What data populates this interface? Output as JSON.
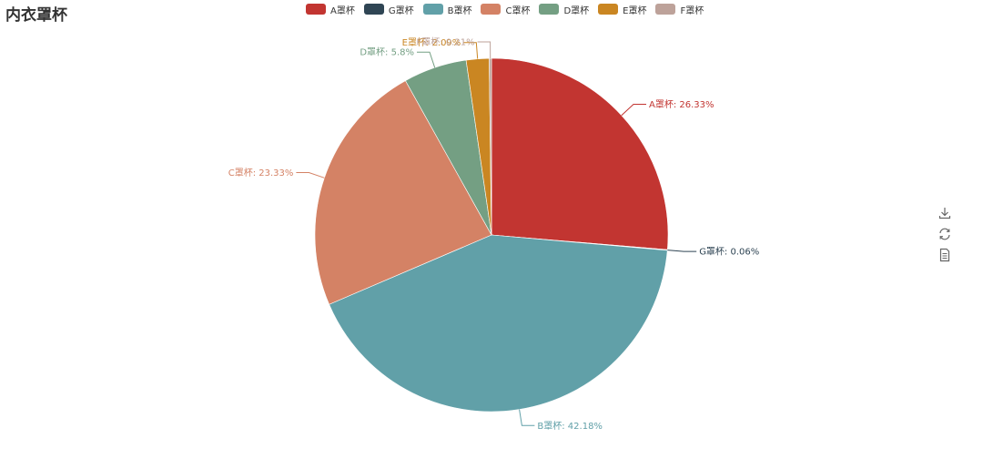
{
  "chart_data": {
    "type": "pie",
    "title": "内衣罩杯",
    "legend": [
      "A罩杯",
      "G罩杯",
      "B罩杯",
      "C罩杯",
      "D罩杯",
      "E罩杯",
      "F罩杯"
    ],
    "slices": [
      {
        "name": "A罩杯",
        "value": 26.33,
        "label": "A罩杯: 26.33%",
        "color": "#c23531"
      },
      {
        "name": "G罩杯",
        "value": 0.06,
        "label": "G罩杯: 0.06%",
        "color": "#2f4554"
      },
      {
        "name": "B罩杯",
        "value": 42.18,
        "label": "B罩杯: 42.18%",
        "color": "#61a0a8"
      },
      {
        "name": "C罩杯",
        "value": 23.33,
        "label": "C罩杯: 23.33%",
        "color": "#d48265"
      },
      {
        "name": "D罩杯",
        "value": 5.8,
        "label": "D罩杯: 5.8%",
        "color": "#749f83"
      },
      {
        "name": "E罩杯",
        "value": 2.09,
        "label": "E罩杯: 2.09%",
        "color": "#ca8622"
      },
      {
        "name": "F罩杯",
        "value": 0.21,
        "label": "F罩杯: 0.21%",
        "color": "#bda29a"
      }
    ],
    "legend_position": "top-center"
  },
  "toolbox": {
    "icons": [
      "download-icon",
      "refresh-icon",
      "data-view-icon"
    ]
  }
}
